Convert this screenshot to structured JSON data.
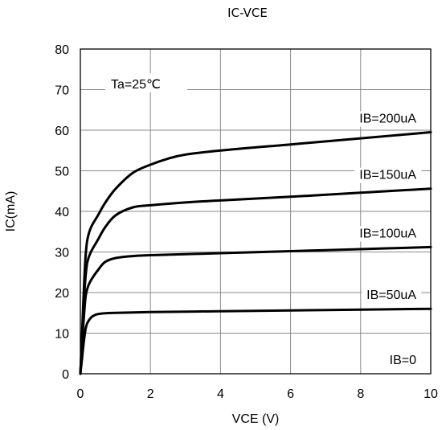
{
  "chart_data": {
    "type": "line",
    "title": "IC-VCE",
    "xlabel": "VCE (V)",
    "ylabel": "IC(mA)",
    "xlim": [
      0,
      10
    ],
    "ylim": [
      0,
      80
    ],
    "xticks": [
      0,
      2,
      4,
      6,
      8,
      10
    ],
    "yticks": [
      0,
      10,
      20,
      30,
      40,
      50,
      60,
      70,
      80
    ],
    "grid": true,
    "annotation": "Ta=25℃",
    "series": [
      {
        "name": "IB=0",
        "x": [
          0,
          10
        ],
        "y": [
          0,
          0
        ]
      },
      {
        "name": "IB=50uA",
        "x": [
          0,
          0.05,
          0.1,
          0.15,
          0.2,
          0.3,
          0.4,
          0.5,
          0.7,
          1,
          2,
          4,
          6,
          8,
          10
        ],
        "y": [
          0,
          4,
          8,
          11,
          12.5,
          13.8,
          14.4,
          14.7,
          14.9,
          15,
          15.2,
          15.4,
          15.6,
          15.8,
          16
        ]
      },
      {
        "name": "IB=100uA",
        "x": [
          0,
          0.05,
          0.1,
          0.15,
          0.2,
          0.3,
          0.5,
          0.7,
          1,
          1.5,
          2,
          4,
          6,
          8,
          10
        ],
        "y": [
          0,
          7,
          14,
          19,
          21,
          23,
          25.5,
          27.5,
          28.5,
          29,
          29.2,
          29.7,
          30.2,
          30.7,
          31.2
        ]
      },
      {
        "name": "IB=150uA",
        "x": [
          0,
          0.05,
          0.1,
          0.15,
          0.2,
          0.3,
          0.5,
          0.7,
          1,
          1.5,
          2,
          3,
          4,
          6,
          8,
          10
        ],
        "y": [
          0,
          9,
          18,
          24,
          27.5,
          30,
          33,
          36,
          39,
          41,
          41.5,
          42.2,
          42.7,
          43.6,
          44.6,
          45.6
        ]
      },
      {
        "name": "IB=200uA",
        "x": [
          0,
          0.05,
          0.1,
          0.15,
          0.2,
          0.3,
          0.5,
          0.7,
          1,
          1.5,
          2,
          2.5,
          3,
          4,
          6,
          8,
          10
        ],
        "y": [
          0,
          10,
          21,
          29,
          33,
          36,
          39,
          42,
          45.5,
          49.5,
          51.5,
          53,
          54,
          55,
          56.5,
          58,
          59.5
        ]
      }
    ]
  }
}
